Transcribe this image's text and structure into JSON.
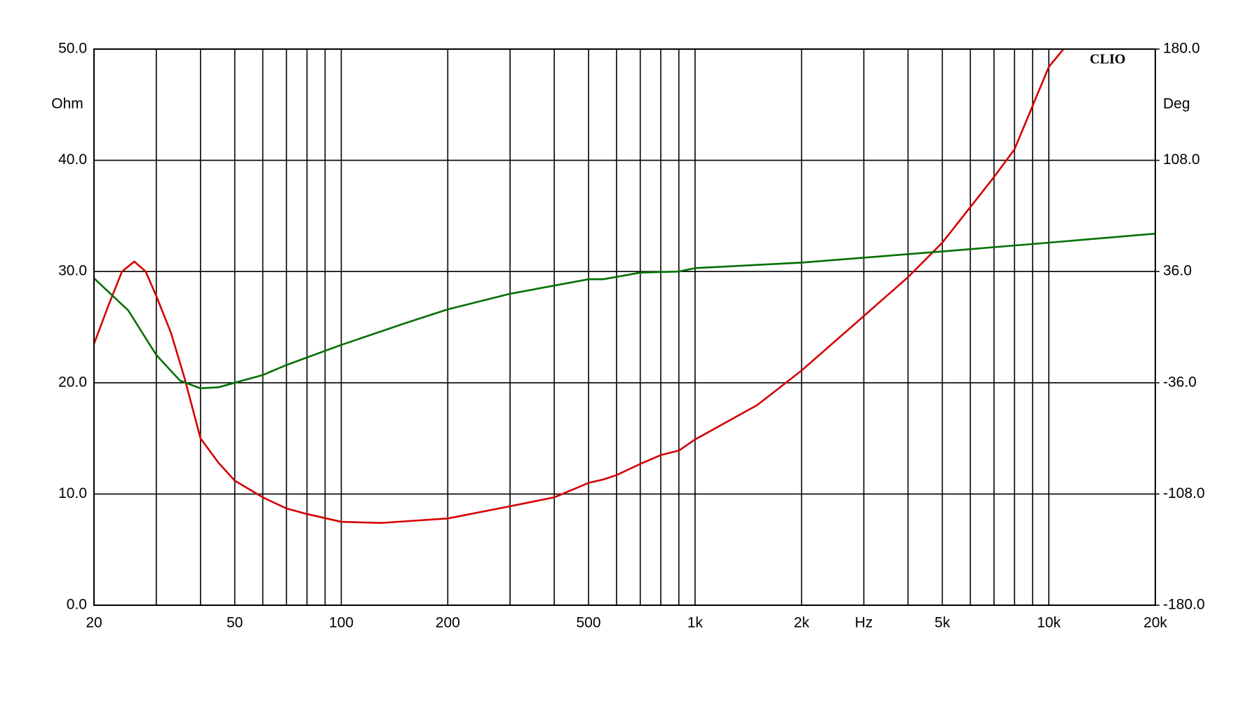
{
  "chart_data": {
    "type": "line",
    "watermark": "CLIO",
    "xlabel": "Hz",
    "ylabel": "Ohm",
    "y2label": "Deg",
    "xscale": "log",
    "grid": true,
    "xlim": [
      20,
      20000
    ],
    "xticks": [
      20,
      50,
      100,
      200,
      500,
      {
        "value": 1000,
        "label": "1k"
      },
      {
        "value": 2000,
        "label": "2k"
      },
      {
        "value": 5000,
        "label": "5k"
      },
      {
        "value": 10000,
        "label": "10k"
      },
      {
        "value": 20000,
        "label": "20k"
      }
    ],
    "xminor": [
      30,
      40,
      60,
      70,
      80,
      90,
      300,
      400,
      600,
      700,
      800,
      900,
      3000,
      4000,
      6000,
      7000,
      8000,
      9000
    ],
    "xlabel_at": 3000,
    "ylim": [
      0,
      50
    ],
    "yticks": [
      {
        "value": 0,
        "label": "0.0"
      },
      {
        "value": 10,
        "label": "10.0"
      },
      {
        "value": 20,
        "label": "20.0"
      },
      {
        "value": 30,
        "label": "30.0"
      },
      {
        "value": 40,
        "label": "40.0"
      },
      {
        "value": 50,
        "label": "50.0"
      }
    ],
    "y2lim": [
      -180,
      180
    ],
    "y2ticks": [
      {
        "value": -180,
        "label": "-180.0"
      },
      {
        "value": -108,
        "label": "-108.0"
      },
      {
        "value": -36,
        "label": "-36.0"
      },
      {
        "value": 36,
        "label": "36.0"
      },
      {
        "value": 108,
        "label": "108.0"
      },
      {
        "value": 180,
        "label": "180.0"
      }
    ],
    "series": [
      {
        "color": "#d40000",
        "x": [
          20,
          22,
          24,
          26,
          28,
          30,
          33,
          36,
          40,
          45,
          50,
          60,
          70,
          80,
          100,
          130,
          200,
          300,
          400,
          500,
          550,
          600,
          700,
          800,
          900,
          1000,
          1500,
          2000,
          3000,
          4000,
          5000,
          7000,
          8000,
          10000,
          11000
        ],
        "values": [
          23.5,
          27,
          30,
          30.9,
          30,
          27.8,
          24.5,
          20.5,
          15,
          12.8,
          11.2,
          9.7,
          8.7,
          8.2,
          7.5,
          7.4,
          7.8,
          8.9,
          9.7,
          11,
          11.3,
          11.7,
          12.7,
          13.5,
          13.9,
          14.9,
          18,
          21.1,
          26,
          29.5,
          32.6,
          38.5,
          41,
          48.4,
          50
        ]
      },
      {
        "color": "#007000",
        "axis": "y2",
        "x": [
          20,
          25,
          30,
          35,
          40,
          45,
          50,
          60,
          70,
          100,
          150,
          200,
          300,
          500,
          550,
          700,
          900,
          1000,
          2000,
          5000,
          10000,
          20000
        ],
        "values": [
          31.7,
          10.8,
          -18,
          -34.6,
          -39.6,
          -38.9,
          -36,
          -31,
          -24.5,
          -11.5,
          2.2,
          11.5,
          21.6,
          31,
          31,
          35.3,
          36,
          38.2,
          41.8,
          49,
          54.7,
          60.5
        ]
      }
    ]
  }
}
